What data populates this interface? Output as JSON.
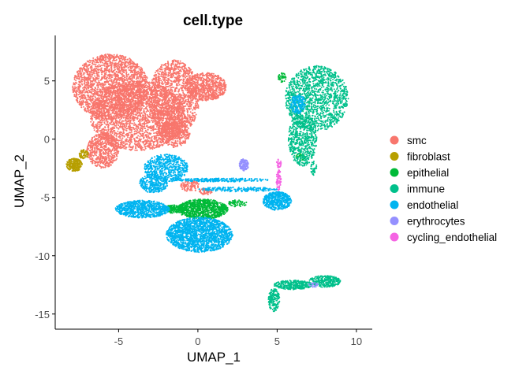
{
  "chart_data": {
    "type": "scatter",
    "title": "cell.type",
    "xlabel": "UMAP_1",
    "ylabel": "UMAP_2",
    "xlim": [
      -9,
      11
    ],
    "ylim": [
      -16.3,
      8.9
    ],
    "x_ticks": [
      -5,
      0,
      5,
      10
    ],
    "y_ticks": [
      5,
      0,
      -5,
      -10,
      -15
    ],
    "x_tick_labels": [
      "-5",
      "0",
      "5",
      "10"
    ],
    "y_tick_labels": [
      "5",
      "0",
      "-5",
      "-10",
      "-15"
    ],
    "grid": false,
    "legend_position": "right",
    "series": [
      {
        "name": "smc",
        "color": "#F8766D",
        "regions": [
          {
            "cx": -5.5,
            "cy": 4.5,
            "rx": 2.4,
            "ry": 2.8,
            "n": 2200
          },
          {
            "cx": -3.8,
            "cy": 2.0,
            "rx": 3.0,
            "ry": 3.0,
            "n": 2600
          },
          {
            "cx": -1.5,
            "cy": 3.5,
            "rx": 1.6,
            "ry": 3.3,
            "n": 1500
          },
          {
            "cx": 0.5,
            "cy": 4.5,
            "rx": 1.3,
            "ry": 1.2,
            "n": 700
          },
          {
            "cx": -6.0,
            "cy": -1.0,
            "rx": 1.0,
            "ry": 1.5,
            "n": 600
          },
          {
            "cx": -1.5,
            "cy": 0.5,
            "rx": 1.0,
            "ry": 1.2,
            "n": 400
          },
          {
            "cx": -0.5,
            "cy": -4.0,
            "rx": 0.6,
            "ry": 0.5,
            "n": 120
          },
          {
            "cx": 0.5,
            "cy": -4.5,
            "rx": 0.4,
            "ry": 0.3,
            "n": 60
          }
        ]
      },
      {
        "name": "fibroblast",
        "color": "#B79F00",
        "regions": [
          {
            "cx": -7.8,
            "cy": -2.2,
            "rx": 0.5,
            "ry": 0.55,
            "n": 220
          },
          {
            "cx": -7.2,
            "cy": -1.3,
            "rx": 0.3,
            "ry": 0.4,
            "n": 60
          }
        ]
      },
      {
        "name": "epithelial",
        "color": "#00BA38",
        "regions": [
          {
            "cx": 0.3,
            "cy": -6.0,
            "rx": 1.6,
            "ry": 0.85,
            "n": 900
          },
          {
            "cx": -1.5,
            "cy": -6.0,
            "rx": 0.7,
            "ry": 0.35,
            "n": 180
          },
          {
            "cx": 2.5,
            "cy": -5.5,
            "rx": 0.6,
            "ry": 0.3,
            "n": 60
          },
          {
            "cx": 5.3,
            "cy": 5.3,
            "rx": 0.25,
            "ry": 0.4,
            "n": 40
          },
          {
            "cx": 6.5,
            "cy": -1.5,
            "rx": 0.3,
            "ry": 0.3,
            "n": 30
          }
        ]
      },
      {
        "name": "immune",
        "color": "#00C08B",
        "regions": [
          {
            "cx": 7.5,
            "cy": 3.5,
            "rx": 2.0,
            "ry": 2.8,
            "n": 1400
          },
          {
            "cx": 6.6,
            "cy": 0.0,
            "rx": 0.9,
            "ry": 2.3,
            "n": 600
          },
          {
            "cx": 7.3,
            "cy": -2.5,
            "rx": 0.2,
            "ry": 0.6,
            "n": 40
          },
          {
            "cx": 6.0,
            "cy": -12.5,
            "rx": 1.2,
            "ry": 0.4,
            "n": 300
          },
          {
            "cx": 8.0,
            "cy": -12.2,
            "rx": 1.0,
            "ry": 0.5,
            "n": 300
          },
          {
            "cx": 4.8,
            "cy": -13.8,
            "rx": 0.35,
            "ry": 1.0,
            "n": 160
          }
        ]
      },
      {
        "name": "endothelial",
        "color": "#00B4F0",
        "regions": [
          {
            "cx": 0.1,
            "cy": -8.2,
            "rx": 2.1,
            "ry": 1.5,
            "n": 1800
          },
          {
            "cx": -3.5,
            "cy": -6.0,
            "rx": 1.7,
            "ry": 0.75,
            "n": 800
          },
          {
            "cx": -2.0,
            "cy": -2.5,
            "rx": 1.4,
            "ry": 1.2,
            "n": 600
          },
          {
            "cx": 5.0,
            "cy": -5.3,
            "rx": 0.9,
            "ry": 0.8,
            "n": 500
          },
          {
            "cx": 1.5,
            "cy": -3.5,
            "rx": 3.0,
            "ry": 0.15,
            "n": 250
          },
          {
            "cx": 2.5,
            "cy": -4.3,
            "rx": 2.5,
            "ry": 0.2,
            "n": 200
          },
          {
            "cx": 6.3,
            "cy": 3.0,
            "rx": 0.5,
            "ry": 0.8,
            "n": 150
          },
          {
            "cx": -2.8,
            "cy": -3.8,
            "rx": 0.9,
            "ry": 0.8,
            "n": 300
          }
        ]
      },
      {
        "name": "erythrocytes",
        "color": "#9590FF",
        "regions": [
          {
            "cx": 2.9,
            "cy": -2.2,
            "rx": 0.3,
            "ry": 0.5,
            "n": 120
          },
          {
            "cx": 7.3,
            "cy": -12.5,
            "rx": 0.3,
            "ry": 0.2,
            "n": 20
          }
        ]
      },
      {
        "name": "cycling_endothelial",
        "color": "#F564E3",
        "regions": [
          {
            "cx": 5.1,
            "cy": -3.5,
            "rx": 0.15,
            "ry": 0.9,
            "n": 80
          },
          {
            "cx": 5.1,
            "cy": -2.1,
            "rx": 0.15,
            "ry": 0.4,
            "n": 30
          }
        ]
      }
    ]
  }
}
